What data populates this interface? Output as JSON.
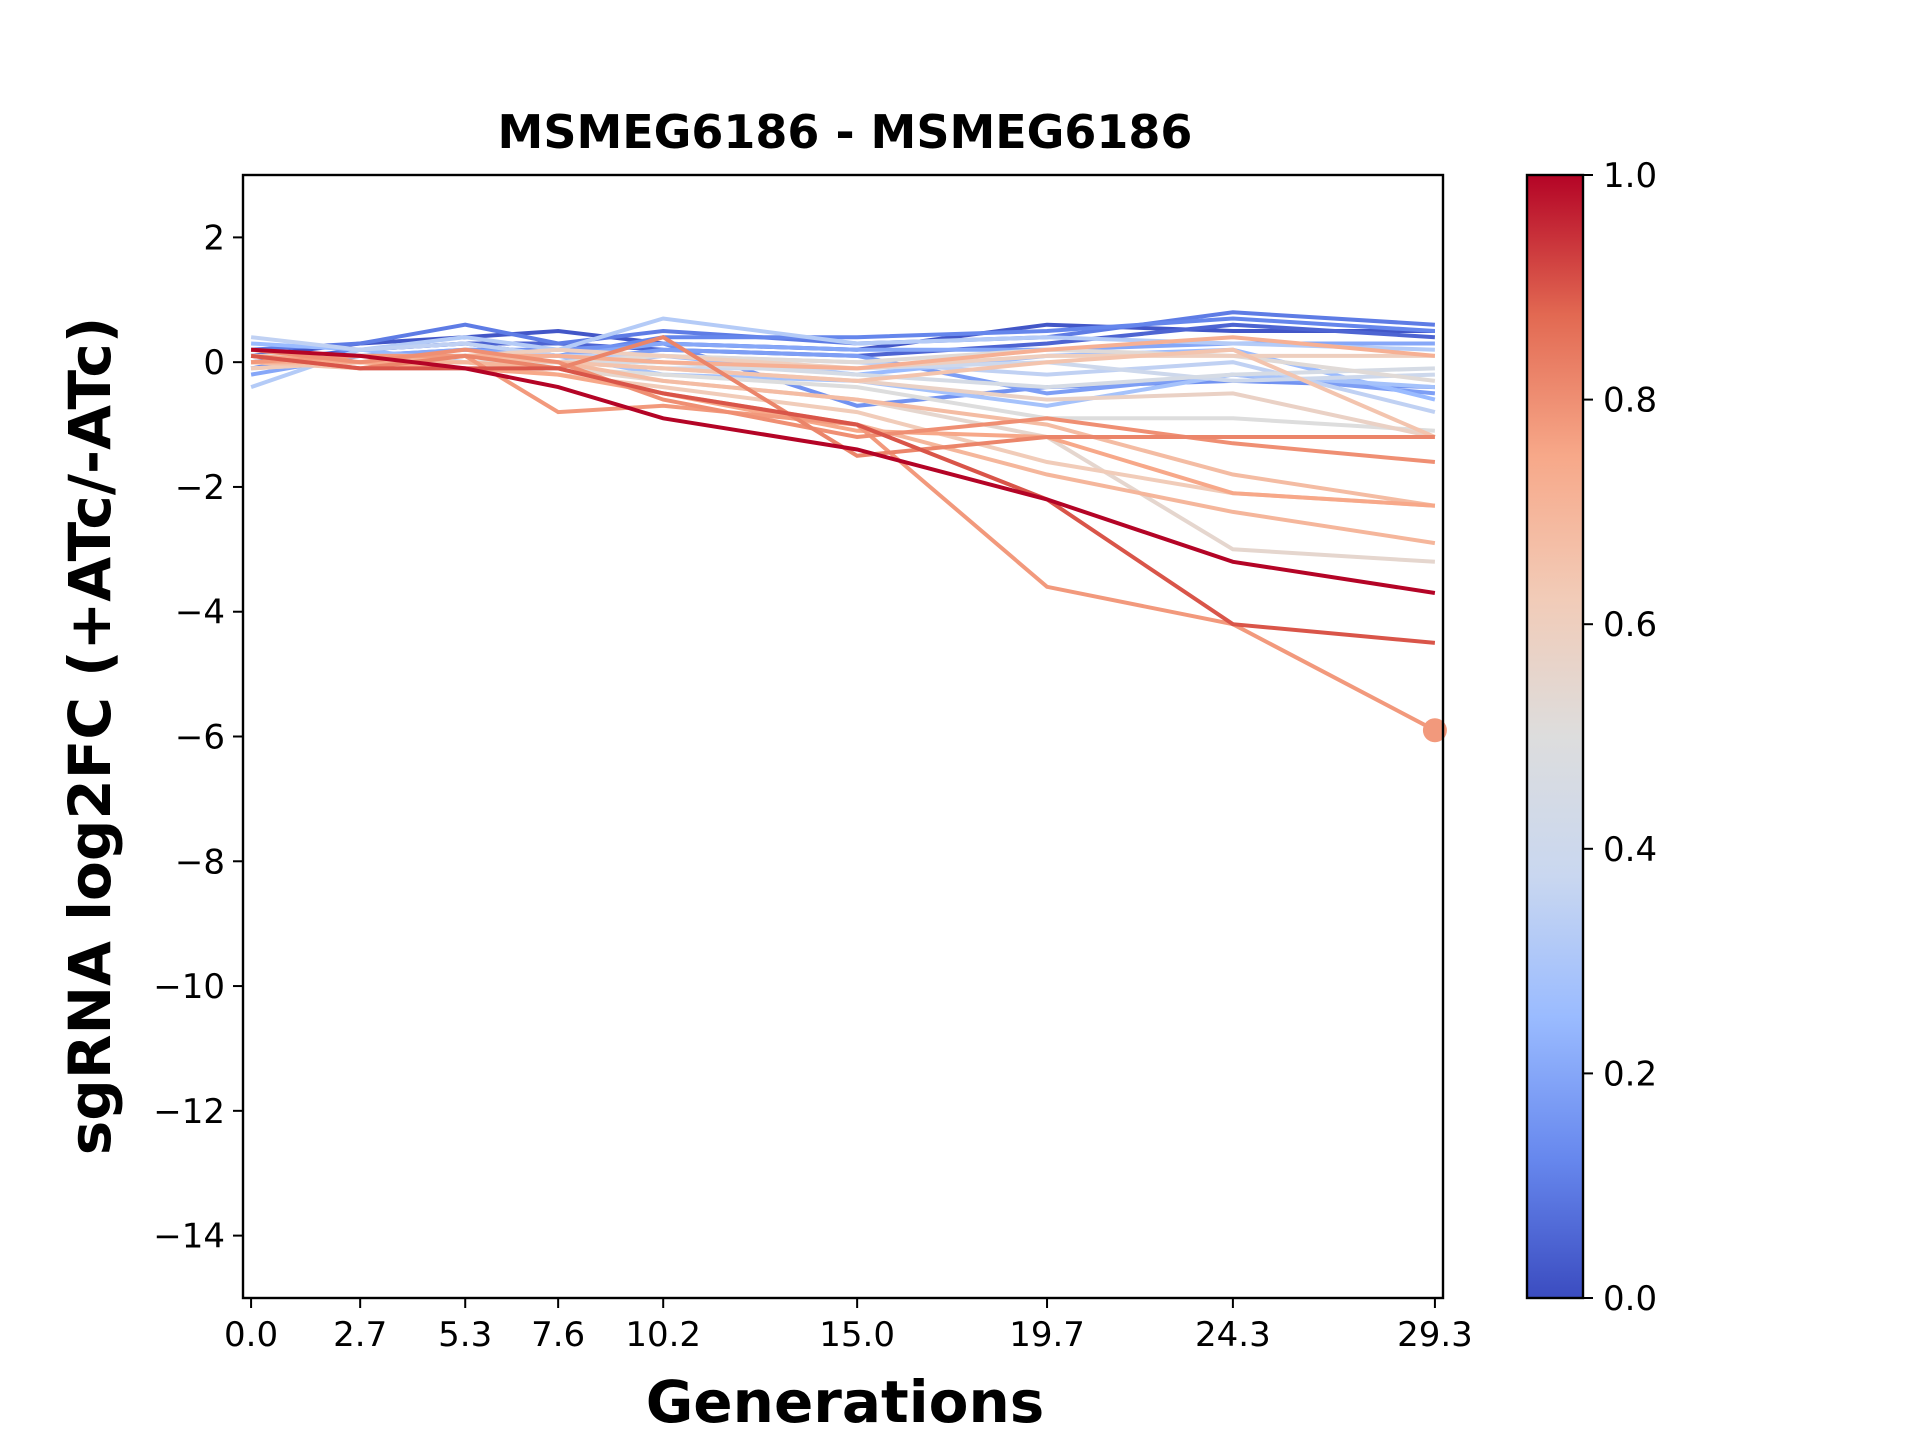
{
  "chart_data": {
    "type": "line",
    "title": "MSMEG6186 - MSMEG6186",
    "xlabel": "Generations",
    "ylabel": "sgRNA log2FC (+ATc/-ATc)",
    "x": [
      0.0,
      2.7,
      5.3,
      7.6,
      10.2,
      15.0,
      19.7,
      24.3,
      29.3
    ],
    "x_tick_labels": [
      "0.0",
      "2.7",
      "5.3",
      "7.6",
      "10.2",
      "15.0",
      "19.7",
      "24.3",
      "29.3"
    ],
    "xlim": [
      -0.2,
      29.5
    ],
    "ylim": [
      -15,
      3
    ],
    "y_ticks": [
      2,
      0,
      -2,
      -4,
      -6,
      -8,
      -10,
      -12,
      -14
    ],
    "y_tick_labels": [
      "2",
      "0",
      "−2",
      "−4",
      "−6",
      "−8",
      "−10",
      "−12",
      "−14"
    ],
    "colorbar": {
      "colormap": "coolwarm",
      "range": [
        0.0,
        1.0
      ],
      "ticks": [
        1.0,
        0.8,
        0.6,
        0.4,
        0.2,
        0.0
      ],
      "tick_labels": [
        "1.0",
        "0.8",
        "0.6",
        "0.4",
        "0.2",
        "0.0"
      ],
      "stops": [
        "#3b4cc0",
        "#6788ee",
        "#9abbff",
        "#c9d7f0",
        "#dddddd",
        "#f2cbb7",
        "#f7a889",
        "#e26952",
        "#b40426"
      ]
    },
    "highlight_point": {
      "x": 29.3,
      "y": -5.9,
      "color_value": 0.78
    },
    "grid": false,
    "series": [
      {
        "color_value": 0.02,
        "values": [
          0.1,
          0.3,
          0.4,
          0.5,
          0.3,
          0.2,
          0.6,
          0.5,
          0.5
        ]
      },
      {
        "color_value": 0.05,
        "values": [
          0.0,
          0.2,
          0.3,
          0.3,
          0.2,
          0.1,
          0.3,
          0.6,
          0.4
        ]
      },
      {
        "color_value": 0.1,
        "values": [
          0.2,
          0.3,
          0.6,
          0.3,
          0.5,
          0.3,
          0.4,
          0.8,
          0.6
        ]
      },
      {
        "color_value": 0.12,
        "values": [
          -0.1,
          0.2,
          0.3,
          0.1,
          0.4,
          0.4,
          0.5,
          0.7,
          0.5
        ]
      },
      {
        "color_value": 0.15,
        "values": [
          0.1,
          0.1,
          0.2,
          0.2,
          0.3,
          -0.7,
          -0.4,
          -0.3,
          -0.4
        ]
      },
      {
        "color_value": 0.18,
        "values": [
          0.0,
          0.0,
          0.1,
          0.0,
          0.2,
          0.1,
          -0.5,
          -0.2,
          -0.5
        ]
      },
      {
        "color_value": 0.2,
        "values": [
          -0.2,
          0.1,
          0.2,
          0.1,
          0.3,
          0.2,
          0.2,
          0.3,
          0.3
        ]
      },
      {
        "color_value": 0.25,
        "values": [
          0.3,
          0.2,
          0.0,
          -0.1,
          0.1,
          -0.2,
          0.1,
          0.2,
          -0.6
        ]
      },
      {
        "color_value": 0.28,
        "values": [
          0.0,
          0.1,
          0.1,
          0.1,
          -0.2,
          -0.3,
          -0.7,
          -0.2,
          -0.4
        ]
      },
      {
        "color_value": 0.32,
        "values": [
          -0.4,
          0.2,
          0.4,
          0.2,
          0.7,
          0.3,
          0.4,
          0.3,
          0.2
        ]
      },
      {
        "color_value": 0.35,
        "values": [
          0.4,
          0.2,
          0.3,
          0.1,
          0.1,
          0.0,
          -0.2,
          0.0,
          -0.8
        ]
      },
      {
        "color_value": 0.4,
        "values": [
          0.1,
          0.1,
          0.0,
          0.0,
          -0.1,
          -0.1,
          0.0,
          -0.3,
          -0.2
        ]
      },
      {
        "color_value": 0.45,
        "values": [
          -0.1,
          0.0,
          0.1,
          0.0,
          0.0,
          -0.2,
          -0.4,
          -0.2,
          -0.1
        ]
      },
      {
        "color_value": 0.5,
        "values": [
          0.0,
          0.0,
          -0.1,
          -0.1,
          -0.2,
          -0.4,
          -0.9,
          -0.9,
          -1.1
        ]
      },
      {
        "color_value": 0.52,
        "values": [
          0.1,
          0.1,
          0.0,
          0.0,
          0.1,
          0.0,
          0.2,
          0.1,
          -0.3
        ]
      },
      {
        "color_value": 0.55,
        "values": [
          0.1,
          0.0,
          0.0,
          -0.1,
          -0.3,
          -0.6,
          -1.2,
          -3.0,
          -3.2
        ]
      },
      {
        "color_value": 0.58,
        "values": [
          0.0,
          0.0,
          0.1,
          0.0,
          -0.1,
          -0.3,
          -0.6,
          -0.5,
          -1.2
        ]
      },
      {
        "color_value": 0.6,
        "values": [
          0.0,
          0.1,
          0.1,
          0.2,
          0.1,
          -0.1,
          0.1,
          0.1,
          0.1
        ]
      },
      {
        "color_value": 0.62,
        "values": [
          -0.1,
          0.0,
          0.0,
          -0.2,
          -0.4,
          -0.8,
          -1.6,
          -2.1,
          -2.3
        ]
      },
      {
        "color_value": 0.65,
        "values": [
          0.0,
          -0.1,
          0.1,
          0.0,
          -0.1,
          -0.3,
          0.0,
          0.2,
          -1.2
        ]
      },
      {
        "color_value": 0.68,
        "values": [
          0.1,
          0.0,
          0.1,
          0.0,
          -0.3,
          -0.6,
          -1.0,
          -1.8,
          -2.3
        ]
      },
      {
        "color_value": 0.7,
        "values": [
          0.0,
          0.0,
          0.0,
          -0.1,
          -0.5,
          -1.0,
          -1.8,
          -2.4,
          -2.9
        ]
      },
      {
        "color_value": 0.72,
        "values": [
          0.0,
          0.0,
          0.1,
          0.1,
          0.0,
          -0.1,
          0.2,
          0.4,
          0.1
        ]
      },
      {
        "color_value": 0.75,
        "values": [
          0.1,
          0.0,
          -0.1,
          -0.2,
          -0.5,
          -1.1,
          -1.2,
          -2.1,
          -2.3
        ]
      },
      {
        "color_value": 0.78,
        "values": [
          0.0,
          0.1,
          0.1,
          -0.8,
          -0.7,
          -1.0,
          -3.6,
          -4.2,
          -5.9
        ]
      },
      {
        "color_value": 0.8,
        "values": [
          0.2,
          0.0,
          0.2,
          0.0,
          -0.6,
          -1.2,
          -0.9,
          -1.3,
          -1.6
        ]
      },
      {
        "color_value": 0.82,
        "values": [
          0.1,
          -0.1,
          0.1,
          -0.1,
          0.4,
          -1.5,
          -1.2,
          -1.2,
          -1.2
        ]
      },
      {
        "color_value": 0.9,
        "values": [
          0.1,
          -0.1,
          -0.1,
          -0.1,
          -0.5,
          -1.0,
          -2.2,
          -4.2,
          -4.5
        ]
      },
      {
        "color_value": 1.0,
        "values": [
          0.2,
          0.1,
          -0.1,
          -0.4,
          -0.9,
          -1.4,
          -2.2,
          -3.2,
          -3.7
        ]
      }
    ]
  }
}
